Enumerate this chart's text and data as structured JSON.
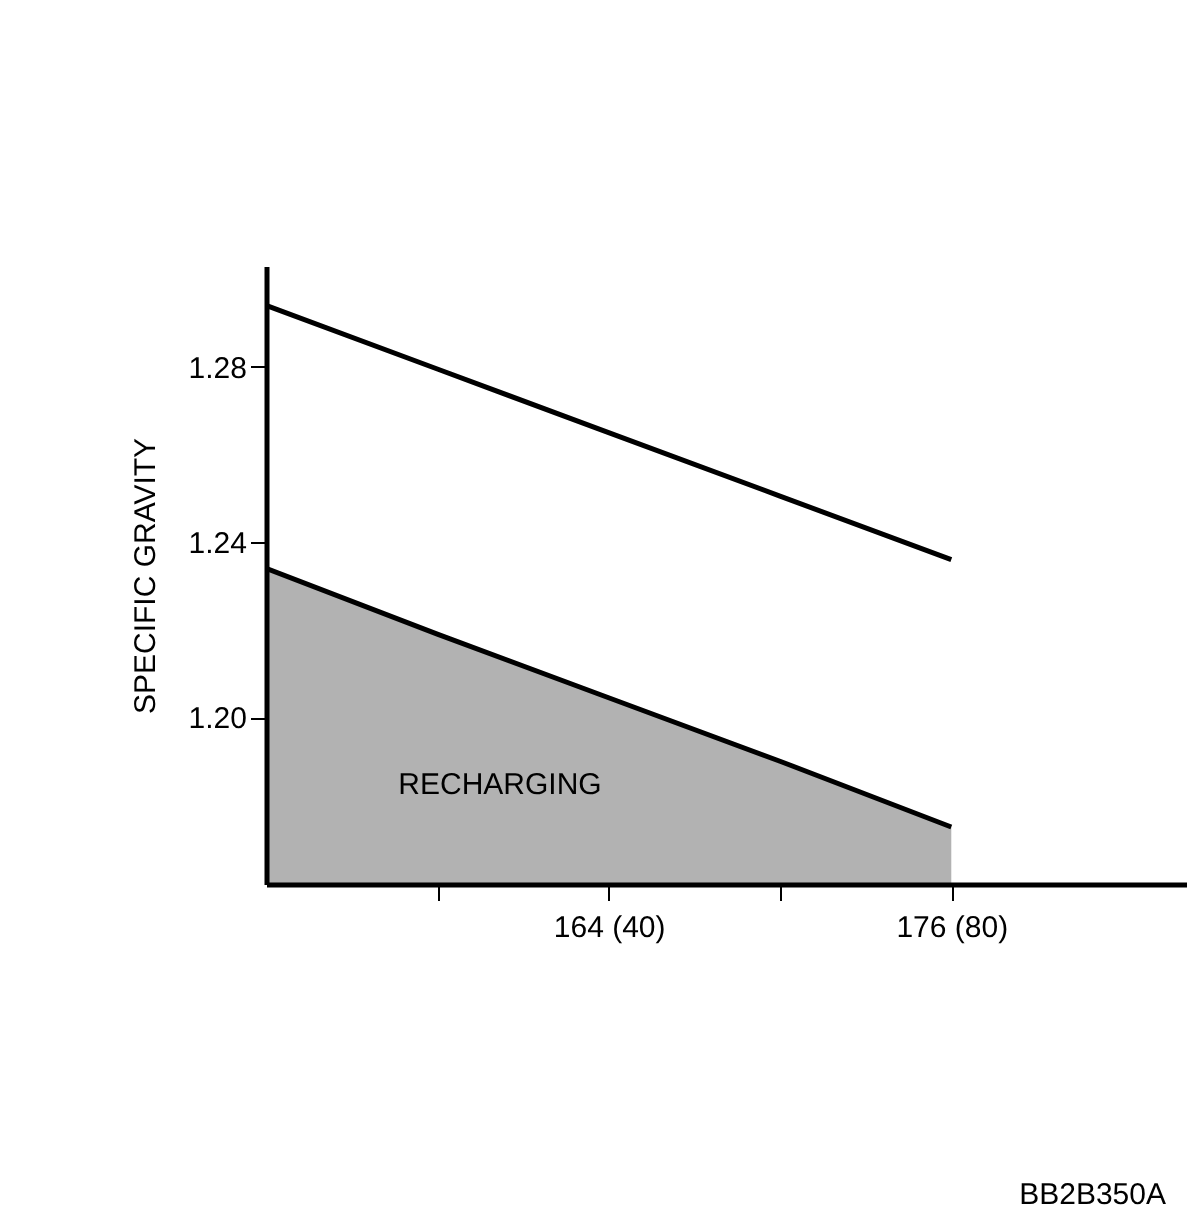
{
  "chart_data": {
    "type": "line",
    "ylabel": "SPECIFIC GRAVITY",
    "categories": [
      null,
      null,
      "164 (40)",
      null,
      "176 (80)"
    ],
    "ylim": [
      1.162,
      1.303
    ],
    "yticks": [
      {
        "value": 1.2,
        "label": "1.20"
      },
      {
        "value": 1.24,
        "label": "1.24"
      },
      {
        "value": 1.28,
        "label": "1.28"
      }
    ],
    "series": [
      {
        "color": "#000000",
        "values": [
          1.294,
          1.2795,
          1.265,
          1.2505,
          1.236
        ]
      },
      {
        "type": "area",
        "color": "#000000",
        "values": [
          1.234,
          1.219,
          1.2045,
          1.19,
          1.175
        ]
      }
    ],
    "annotations": [
      "RECHARGING",
      "BB2B350A"
    ],
    "grid": false,
    "marker": "none",
    "line_style": "solid"
  }
}
